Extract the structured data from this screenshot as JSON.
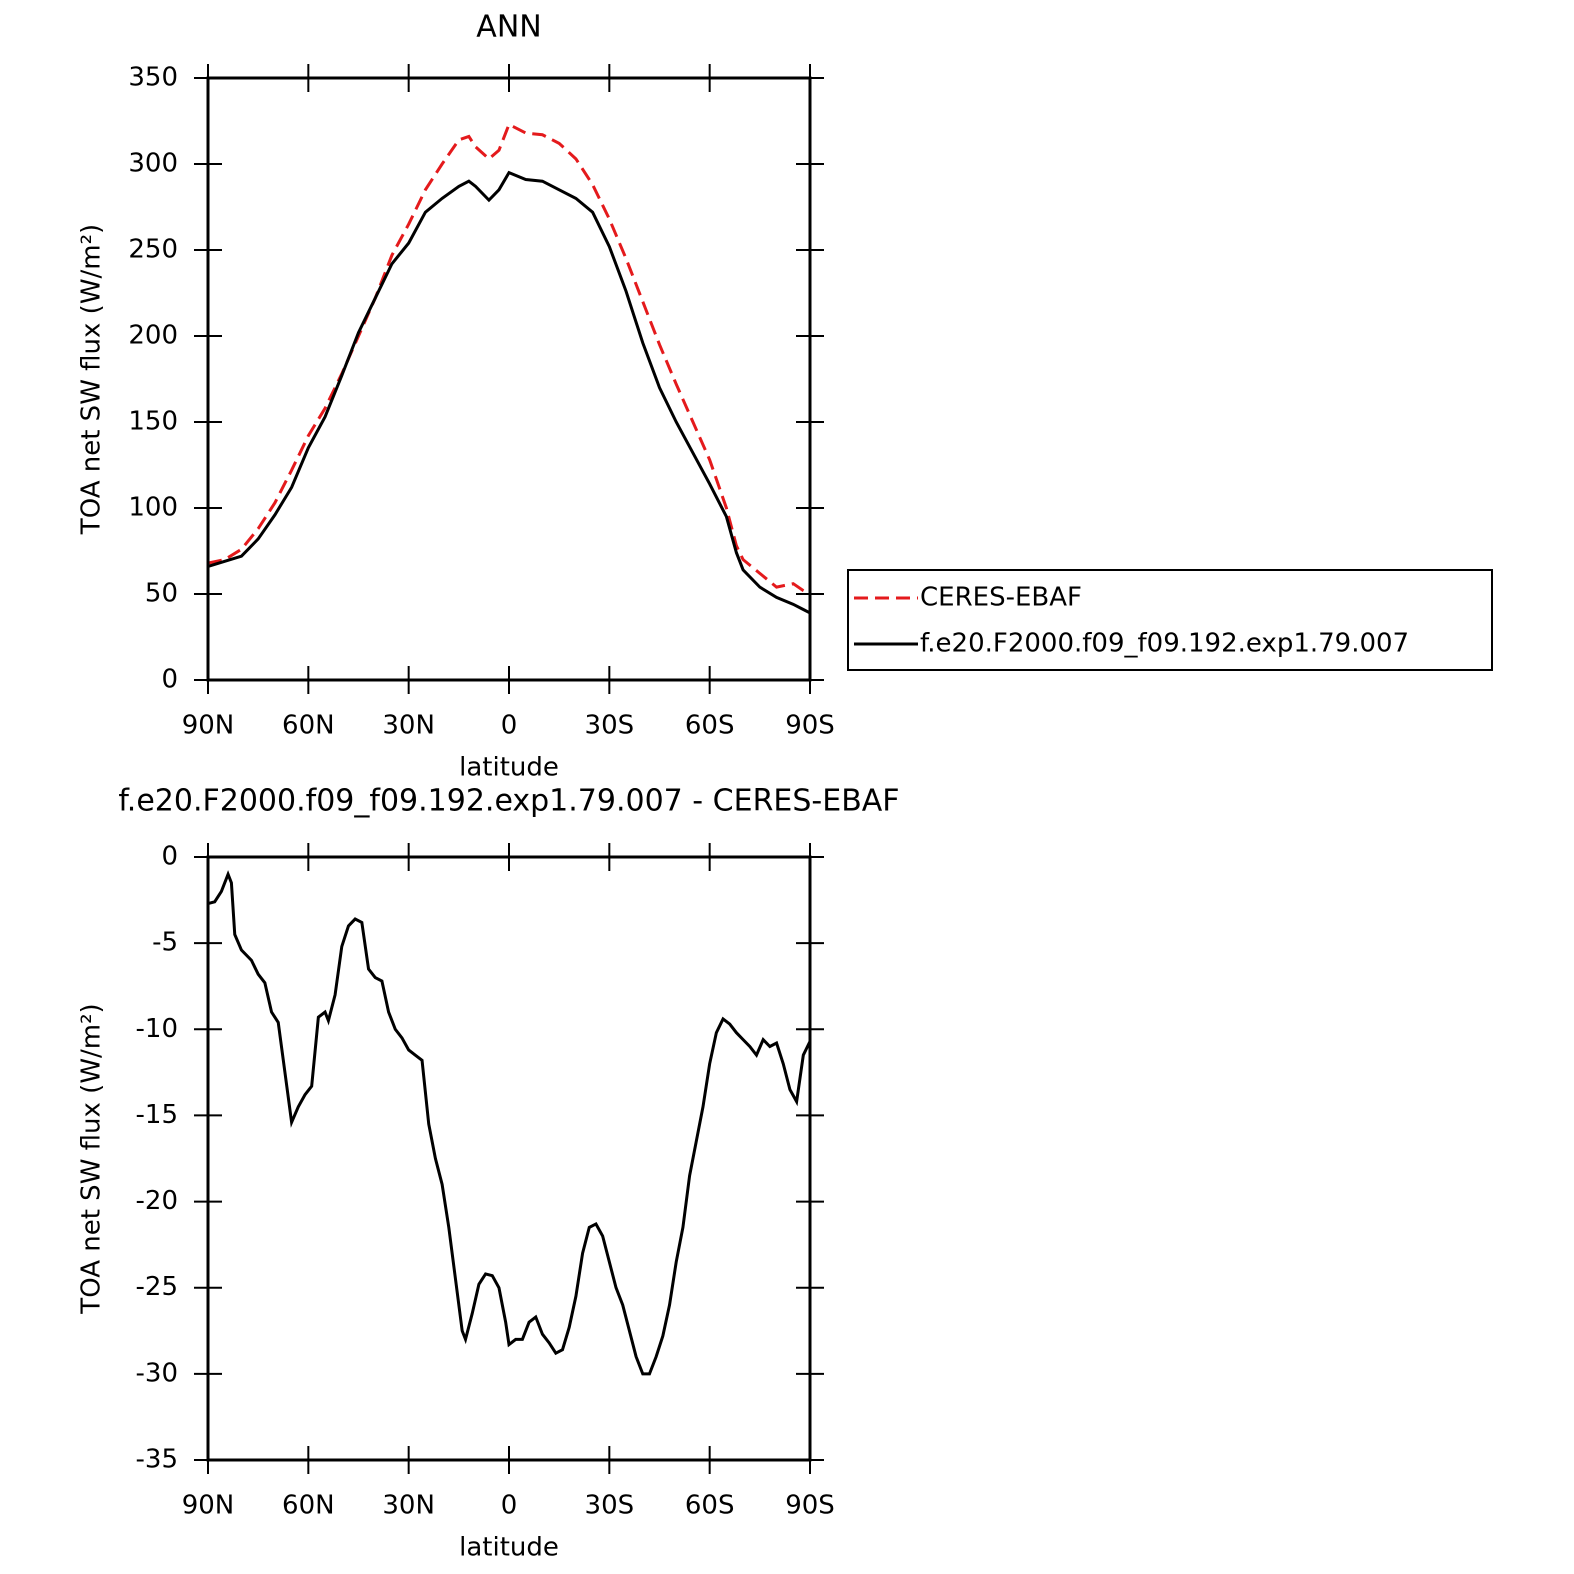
{
  "chart_data": [
    {
      "type": "line",
      "title": "ANN",
      "xlabel": "latitude",
      "ylabel": "TOA net SW flux (W/m²)",
      "xlim": [
        90,
        -90
      ],
      "xticks": [
        {
          "value": 90,
          "label": "90N"
        },
        {
          "value": 60,
          "label": "60N"
        },
        {
          "value": 30,
          "label": "30N"
        },
        0,
        {
          "value": -30,
          "label": "30S"
        },
        {
          "value": -60,
          "label": "60S"
        },
        {
          "value": -90,
          "label": "90S"
        }
      ],
      "ylim": [
        0,
        350
      ],
      "yticks": [
        0,
        50,
        100,
        150,
        200,
        250,
        300,
        350
      ],
      "legend": "right",
      "x": [
        90,
        85,
        80,
        75,
        70,
        65,
        60,
        55,
        50,
        45,
        40,
        35,
        30,
        25,
        20,
        15,
        12,
        10,
        6,
        3,
        0,
        -5,
        -10,
        -15,
        -20,
        -25,
        -30,
        -35,
        -40,
        -45,
        -50,
        -55,
        -60,
        -65,
        -68,
        -70,
        -75,
        -80,
        -85,
        -88,
        -90
      ],
      "series": [
        {
          "name": "CERES-EBAF",
          "color": "#e41a1c",
          "dash": "dashed",
          "values": [
            68,
            70,
            76,
            88,
            103,
            122,
            142,
            158,
            178,
            200,
            222,
            247,
            265,
            285,
            300,
            314,
            316,
            310,
            303,
            308,
            323,
            318,
            317,
            312,
            303,
            288,
            268,
            245,
            220,
            195,
            172,
            150,
            128,
            100,
            78,
            70,
            62,
            54,
            56,
            52,
            50
          ]
        },
        {
          "name": "f.e20.F2000.f09_f09.192.exp1.79.007",
          "color": "#000000",
          "dash": "solid",
          "values": [
            66,
            69,
            72,
            82,
            96,
            112,
            135,
            153,
            177,
            202,
            222,
            242,
            254,
            272,
            280,
            287,
            290,
            287,
            279,
            285,
            295,
            291,
            290,
            285,
            280,
            272,
            252,
            226,
            196,
            170,
            150,
            132,
            114,
            95,
            74,
            64,
            54,
            48,
            44,
            41,
            39
          ]
        }
      ]
    },
    {
      "type": "line",
      "title": "f.e20.F2000.f09_f09.192.exp1.79.007 - CERES-EBAF",
      "xlabel": "latitude",
      "ylabel": "TOA net SW flux (W/m²)",
      "xlim": [
        90,
        -90
      ],
      "xticks": [
        {
          "value": 90,
          "label": "90N"
        },
        {
          "value": 60,
          "label": "60N"
        },
        {
          "value": 30,
          "label": "30N"
        },
        0,
        {
          "value": -30,
          "label": "30S"
        },
        {
          "value": -60,
          "label": "60S"
        },
        {
          "value": -90,
          "label": "90S"
        }
      ],
      "ylim": [
        -35,
        0
      ],
      "yticks": [
        -35,
        -30,
        -25,
        -20,
        -15,
        -10,
        -5,
        0
      ],
      "color": "#000000",
      "x": [
        90,
        88,
        86,
        84,
        83,
        82,
        80,
        77,
        75,
        73,
        71,
        69,
        67,
        65,
        63,
        61,
        59,
        57,
        55,
        54,
        52,
        50,
        48,
        46,
        44,
        42,
        40,
        38,
        36,
        34,
        32,
        30,
        28,
        26,
        24,
        22,
        20,
        18,
        16,
        14,
        13,
        11,
        9,
        7,
        5,
        3,
        1,
        0,
        -2,
        -4,
        -6,
        -8,
        -10,
        -12,
        -14,
        -16,
        -18,
        -20,
        -22,
        -24,
        -26,
        -28,
        -30,
        -32,
        -34,
        -36,
        -38,
        -40,
        -42,
        -44,
        -46,
        -48,
        -50,
        -52,
        -54,
        -56,
        -58,
        -60,
        -62,
        -64,
        -66,
        -68,
        -70,
        -72,
        -74,
        -76,
        -78,
        -80,
        -82,
        -84,
        -86,
        -88,
        -90
      ],
      "values": [
        -2.7,
        -2.6,
        -2.0,
        -1.0,
        -1.5,
        -4.5,
        -5.4,
        -6.0,
        -6.8,
        -7.3,
        -9.0,
        -9.6,
        -12.5,
        -15.4,
        -14.5,
        -13.8,
        -13.3,
        -9.3,
        -9.0,
        -9.5,
        -8.0,
        -5.2,
        -4.0,
        -3.6,
        -3.8,
        -6.5,
        -7.0,
        -7.2,
        -9.0,
        -10.0,
        -10.5,
        -11.2,
        -11.5,
        -11.8,
        -15.5,
        -17.5,
        -19.0,
        -21.5,
        -24.5,
        -27.5,
        -28.0,
        -26.5,
        -24.8,
        -24.2,
        -24.3,
        -25.0,
        -27.0,
        -28.3,
        -28.0,
        -28.0,
        -27.0,
        -26.7,
        -27.7,
        -28.2,
        -28.8,
        -28.6,
        -27.3,
        -25.5,
        -23.0,
        -21.5,
        -21.3,
        -22.0,
        -23.5,
        -25.0,
        -26.0,
        -27.5,
        -29.0,
        -30.0,
        -30.0,
        -29.0,
        -27.8,
        -26.0,
        -23.5,
        -21.5,
        -18.5,
        -16.5,
        -14.5,
        -12.0,
        -10.2,
        -9.4,
        -9.7,
        -10.2,
        -10.6,
        -11.0,
        -11.5,
        -10.6,
        -11.0,
        -10.8,
        -12.0,
        -13.5,
        -14.2,
        -11.5,
        -10.7
      ]
    }
  ]
}
